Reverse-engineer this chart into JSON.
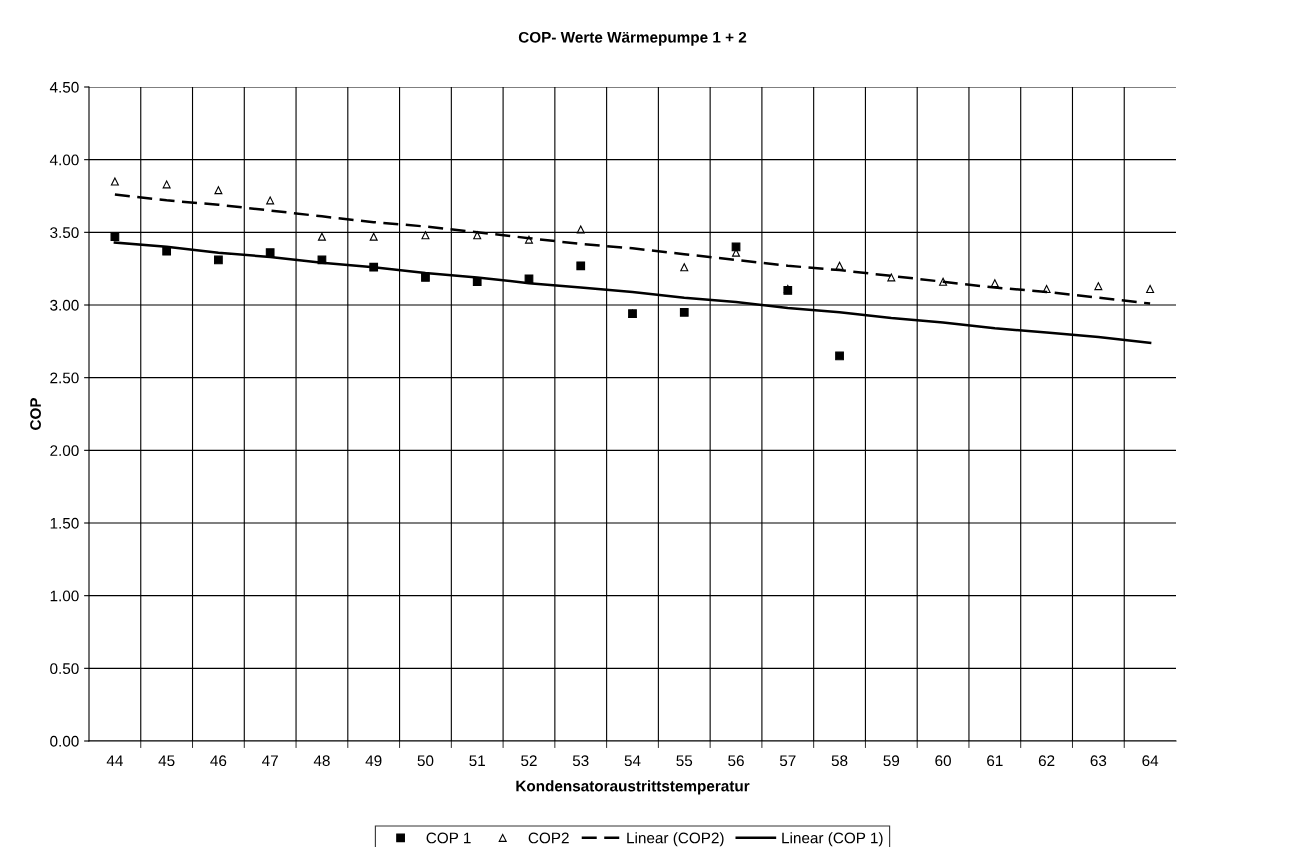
{
  "chart_data": {
    "type": "scatter",
    "title": "COP- Werte Wärmepumpe 1 + 2",
    "xlabel": "Kondensatoraustrittstemperatur",
    "ylabel": "COP",
    "categories": [
      "44",
      "45",
      "46",
      "47",
      "48",
      "49",
      "50",
      "51",
      "52",
      "53",
      "54",
      "55",
      "56",
      "57",
      "58",
      "59",
      "60",
      "61",
      "62",
      "63",
      "64"
    ],
    "series": [
      {
        "name": "COP 1",
        "marker": "square",
        "color": "#000000",
        "values": [
          3.47,
          3.37,
          3.31,
          3.36,
          3.31,
          3.26,
          3.19,
          3.16,
          3.18,
          3.27,
          2.94,
          2.95,
          3.4,
          3.1,
          2.65,
          null,
          null,
          null,
          null,
          null,
          null
        ]
      },
      {
        "name": "COP2",
        "marker": "triangle",
        "color": "#000000",
        "values": [
          3.85,
          3.83,
          3.79,
          3.72,
          3.47,
          3.47,
          3.48,
          3.48,
          3.45,
          3.52,
          2.94,
          3.26,
          3.36,
          3.11,
          3.27,
          3.19,
          3.16,
          3.15,
          3.11,
          3.13,
          3.11
        ]
      },
      {
        "name": "Linear (COP2)",
        "type": "line",
        "line_style": "dashed",
        "marker": "none",
        "color": "#000000",
        "values": [
          3.76,
          3.72,
          3.69,
          3.65,
          3.61,
          3.57,
          3.54,
          3.5,
          3.46,
          3.42,
          3.39,
          3.35,
          3.31,
          3.27,
          3.24,
          3.2,
          3.16,
          3.12,
          3.09,
          3.05,
          3.01
        ]
      },
      {
        "name": "Linear (COP 1)",
        "type": "line",
        "line_style": "solid",
        "marker": "none",
        "color": "#000000",
        "values": [
          3.43,
          3.4,
          3.36,
          3.33,
          3.29,
          3.26,
          3.22,
          3.19,
          3.15,
          3.12,
          3.09,
          3.05,
          3.02,
          2.98,
          2.95,
          2.91,
          2.88,
          2.84,
          2.81,
          2.78,
          2.74
        ]
      }
    ],
    "ylim": [
      0,
      4.5
    ],
    "yticks": [
      {
        "value": 0,
        "label": "0.00"
      },
      {
        "value": 0.5,
        "label": "0.50"
      },
      {
        "value": 1,
        "label": "1.00"
      },
      {
        "value": 1.5,
        "label": "1.50"
      },
      {
        "value": 2,
        "label": "2.00"
      },
      {
        "value": 2.5,
        "label": "2.50"
      },
      {
        "value": 3,
        "label": "3.00"
      },
      {
        "value": 3.5,
        "label": "3.50"
      },
      {
        "value": 4,
        "label": "4.00"
      },
      {
        "value": 4.5,
        "label": "4.50"
      }
    ],
    "grid": true,
    "legend": "bottom"
  }
}
